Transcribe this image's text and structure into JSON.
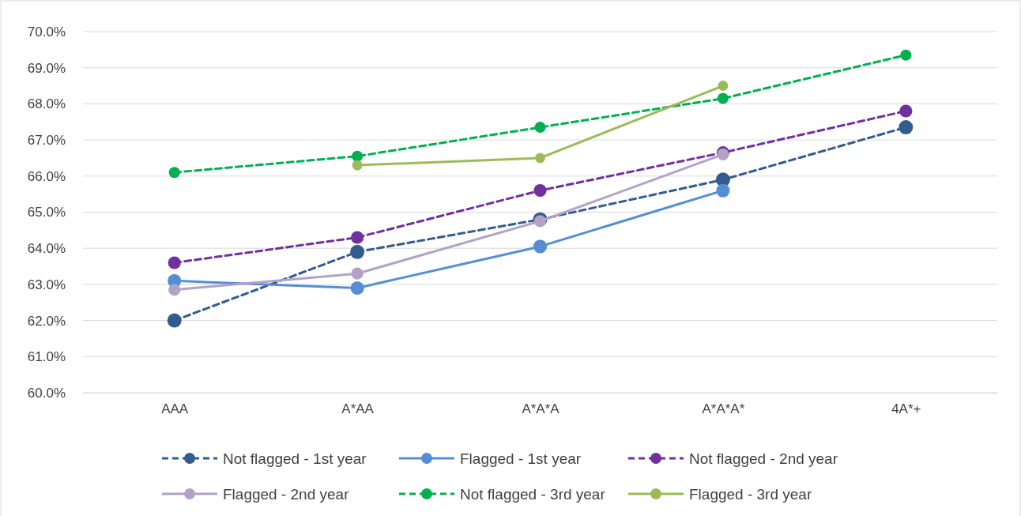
{
  "chart_data": {
    "type": "line",
    "categories": [
      "AAA",
      "A*AA",
      "A*A*A",
      "A*A*A*",
      "4A*+"
    ],
    "ylim": [
      60,
      70
    ],
    "yticks": [
      {
        "value": 60,
        "label": "60.0%"
      },
      {
        "value": 61,
        "label": "61.0%"
      },
      {
        "value": 62,
        "label": "62.0%"
      },
      {
        "value": 63,
        "label": "63.0%"
      },
      {
        "value": 64,
        "label": "64.0%"
      },
      {
        "value": 65,
        "label": "65.0%"
      },
      {
        "value": 66,
        "label": "66.0%"
      },
      {
        "value": 67,
        "label": "67.0%"
      },
      {
        "value": 68,
        "label": "68.0%"
      },
      {
        "value": 69,
        "label": "69.0%"
      },
      {
        "value": 70,
        "label": "70.0%"
      }
    ],
    "grid": "y",
    "legend": "bottom",
    "marker": "circle",
    "series": [
      {
        "name": "Not flagged - 1st year",
        "color": "#335b8e",
        "line_style": "dashed",
        "values": [
          62.0,
          63.9,
          64.8,
          65.9,
          67.35
        ]
      },
      {
        "name": "Flagged - 1st year",
        "color": "#558ed5",
        "line_style": "solid",
        "values": [
          63.1,
          62.9,
          64.05,
          65.6,
          null
        ]
      },
      {
        "name": "Not flagged - 2nd year",
        "color": "#7030a0",
        "line_style": "dashed",
        "values": [
          63.6,
          64.3,
          65.6,
          66.65,
          67.8
        ]
      },
      {
        "name": "Flagged - 2nd year",
        "color": "#b3a2c7",
        "line_style": "solid",
        "values": [
          62.85,
          63.3,
          64.75,
          66.6,
          null
        ]
      },
      {
        "name": "Not flagged - 3rd year",
        "color": "#00b050",
        "line_style": "dashed",
        "values": [
          66.1,
          66.55,
          67.35,
          68.15,
          69.35
        ]
      },
      {
        "name": "Flagged - 3rd year",
        "color": "#9bbb59",
        "line_style": "solid",
        "values": [
          null,
          66.3,
          66.5,
          68.5,
          null
        ]
      }
    ]
  }
}
